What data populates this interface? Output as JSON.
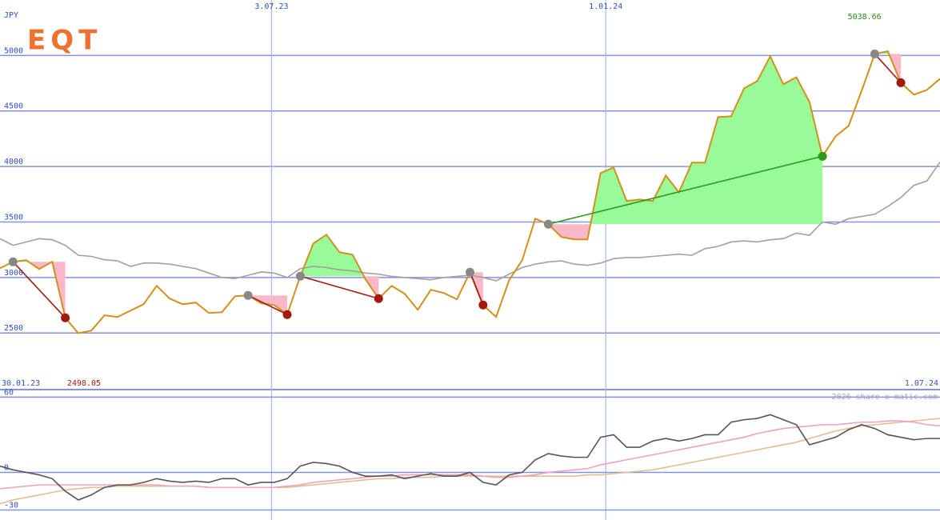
{
  "logo": "EQT",
  "watermark": "2026 share-o-matic.com",
  "chart_data": [
    {
      "type": "line",
      "y_label": "JPY",
      "xlim": [
        0,
        72
      ],
      "ylim": [
        1990,
        5500
      ],
      "yticks": [
        2500,
        3000,
        3500,
        4000,
        4500,
        5000
      ],
      "xticks": [
        {
          "value": 20.8,
          "label": "3.07.23"
        },
        {
          "value": 46.4,
          "label": "1.01.24"
        }
      ],
      "start_date": "30.01.23",
      "end_date": "1.07.24",
      "min_index": 6,
      "max_index": 68,
      "series": [
        {
          "color": "#d4901a",
          "values": [
            3084,
            3141,
            3156,
            3076,
            3141,
            2637,
            2498.05,
            2522,
            2659,
            2644,
            2702,
            2759,
            2925,
            2810,
            2759,
            2774,
            2680,
            2687,
            2831,
            2839,
            2767,
            2752,
            2666,
            3012,
            3307,
            3386,
            3228,
            3206,
            2983,
            2810,
            2925,
            2853,
            2709,
            2889,
            2860,
            2803,
            3048,
            2752,
            2644,
            2976,
            3156,
            3530,
            3480,
            3365,
            3343,
            3343,
            3941,
            3991,
            3689,
            3703,
            3689,
            3919,
            3768,
            4035,
            4035,
            4445,
            4452,
            4705,
            4769,
            4993,
            4741,
            4805,
            4582,
            4092,
            4272,
            4366,
            4683,
            5014,
            5038.66,
            4755,
            4647,
            4690,
            4791
          ]
        },
        {
          "color": "#a0a0a0",
          "values": [
            3350,
            3290,
            3320,
            3350,
            3340,
            3290,
            3200,
            3190,
            3160,
            3150,
            3100,
            3130,
            3130,
            3120,
            3100,
            3080,
            3040,
            3000,
            2990,
            3020,
            3050,
            3040,
            3000,
            3080,
            3100,
            3090,
            3070,
            3060,
            3040,
            3030,
            3010,
            3000,
            2990,
            2980,
            3000,
            3010,
            3020,
            3000,
            2970,
            3030,
            3090,
            3120,
            3140,
            3150,
            3120,
            3110,
            3130,
            3170,
            3180,
            3180,
            3190,
            3200,
            3210,
            3200,
            3260,
            3280,
            3320,
            3330,
            3320,
            3340,
            3350,
            3400,
            3380,
            3500,
            3480,
            3530,
            3550,
            3570,
            3640,
            3720,
            3830,
            3870,
            4040
          ]
        }
      ],
      "trades": [
        {
          "entry": 1,
          "exit": 5
        },
        {
          "entry": 19,
          "exit": 22
        },
        {
          "entry": 23,
          "exit": 29
        },
        {
          "entry": 36,
          "exit": 37
        },
        {
          "entry": 42,
          "exit": 63
        },
        {
          "entry": 67,
          "exit": 69
        }
      ],
      "up_color": "#98fb98",
      "down_color": "#f8b8c8",
      "win_color": "#2a9a1a",
      "loss_color": "#a01a10",
      "grid": true
    },
    {
      "type": "line",
      "xlim": [
        0,
        72
      ],
      "ylim": [
        -38,
        66
      ],
      "yticks": [
        60,
        0,
        -30
      ],
      "series": [
        {
          "color": "#555555",
          "values": [
            5,
            2,
            0,
            -2,
            -5,
            -15,
            -22,
            -18,
            -12,
            -10,
            -10,
            -8,
            -5,
            -7,
            -8,
            -7,
            -8,
            -5,
            -5,
            -10,
            -8,
            -8,
            -5,
            5,
            8,
            7,
            5,
            0,
            -3,
            -3,
            -2,
            -5,
            -3,
            -1,
            -3,
            -3,
            0,
            -8,
            -10,
            -2,
            0,
            10,
            15,
            13,
            12,
            12,
            28,
            30,
            20,
            20,
            25,
            27,
            25,
            27,
            30,
            30,
            40,
            42,
            43,
            46,
            42,
            38,
            22,
            25,
            28,
            34,
            38,
            35,
            30,
            28,
            26,
            27,
            27
          ]
        },
        {
          "color": "#f0a0c0",
          "values": [
            -13,
            -12,
            -11,
            -10,
            -10,
            -10,
            -10,
            -10,
            -10,
            -10,
            -10,
            -10,
            -10,
            -11,
            -11,
            -11,
            -12,
            -12,
            -12,
            -12,
            -12,
            -12,
            -11,
            -10,
            -8,
            -7,
            -6,
            -5,
            -4,
            -3,
            -3,
            -2,
            -2,
            -2,
            -2,
            -2,
            -2,
            -3,
            -4,
            -4,
            -3,
            -2,
            0,
            1,
            2,
            3,
            6,
            8,
            10,
            12,
            14,
            16,
            18,
            20,
            22,
            24,
            26,
            28,
            31,
            33,
            35,
            36,
            37,
            38,
            38,
            39,
            40,
            40,
            41,
            41,
            40,
            38,
            37
          ]
        },
        {
          "color": "#e0c090",
          "values": [
            -25,
            -22,
            -20,
            -18,
            -16,
            -14,
            -13,
            -12,
            -12,
            -11,
            -11,
            -11,
            -11,
            -11,
            -11,
            -11,
            -12,
            -12,
            -12,
            -12,
            -12,
            -12,
            -12,
            -11,
            -10,
            -9,
            -8,
            -7,
            -6,
            -5,
            -5,
            -4,
            -4,
            -4,
            -3,
            -3,
            -3,
            -3,
            -3,
            -3,
            -3,
            -3,
            -3,
            -3,
            -3,
            -2,
            -2,
            -1,
            0,
            1,
            2,
            4,
            6,
            8,
            10,
            12,
            14,
            16,
            18,
            20,
            22,
            24,
            27,
            30,
            33,
            35,
            37,
            38,
            39,
            40,
            41,
            42,
            43
          ]
        }
      ],
      "grid": true
    }
  ]
}
